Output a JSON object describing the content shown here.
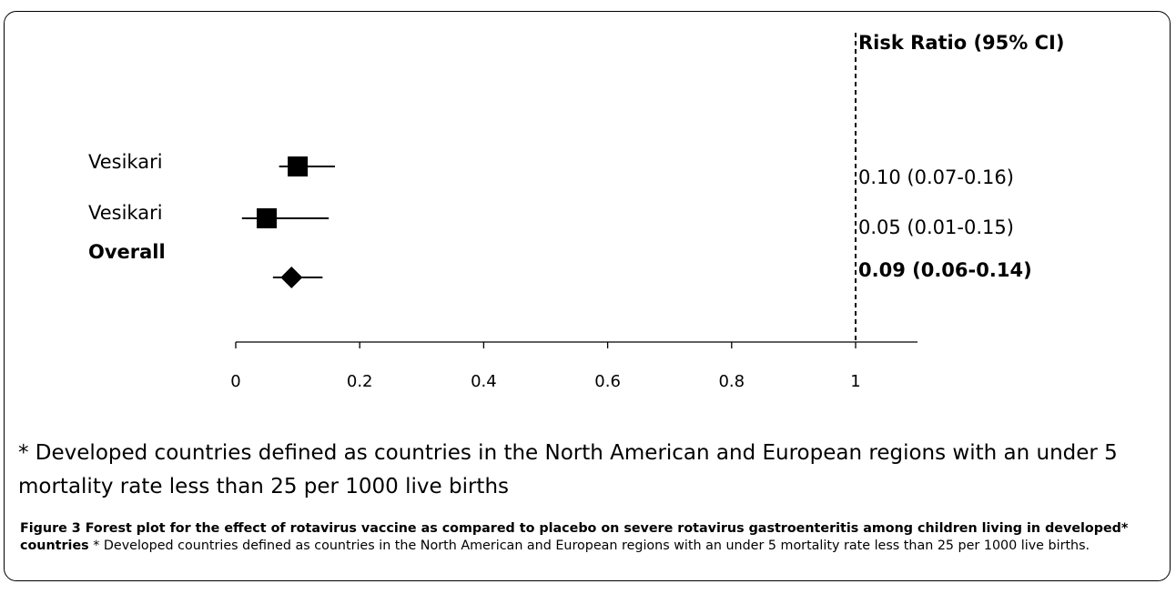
{
  "chart_data": {
    "type": "forest",
    "ci_header": "Risk Ratio (95% CI)",
    "xlim": [
      0,
      1.1
    ],
    "xticks": [
      {
        "value": 0,
        "label": "0"
      },
      {
        "value": 0.2,
        "label": "0.2"
      },
      {
        "value": 0.4,
        "label": "0.4"
      },
      {
        "value": 0.6,
        "label": "0.6"
      },
      {
        "value": 0.8,
        "label": "0.8"
      },
      {
        "value": 1,
        "label": "1"
      }
    ],
    "reference_line": 1,
    "studies": [
      {
        "label": "Vesikari",
        "estimate": 0.1,
        "lower": 0.07,
        "upper": 0.16,
        "ci_text": "0.10 (0.07-0.16)",
        "marker": "square"
      },
      {
        "label": "Vesikari",
        "estimate": 0.05,
        "lower": 0.01,
        "upper": 0.15,
        "ci_text": "0.05 (0.01-0.15)",
        "marker": "square"
      }
    ],
    "overall": {
      "label": "Overall",
      "estimate": 0.09,
      "lower": 0.06,
      "upper": 0.14,
      "ci_text": "0.09 (0.06-0.14)",
      "marker": "diamond"
    }
  },
  "footnote": "* Developed countries defined as countries in the North American and European regions with an under 5 mortality rate less than 25 per 1000 live births",
  "caption": {
    "title": "Figure 3 Forest plot for the effect of rotavirus vaccine as compared to placebo on severe rotavirus gastroenteritis among children living in developed* countries",
    "text": " * Developed countries defined as countries in the North American and European regions with an under 5 mortality rate less than 25 per 1000 live births."
  }
}
